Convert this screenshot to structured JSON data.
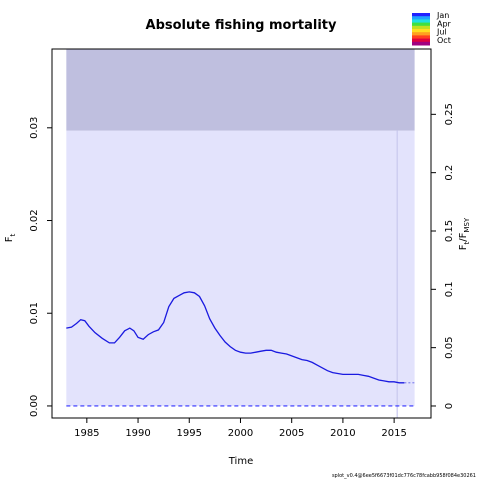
{
  "chart_data": {
    "type": "line",
    "title": "Absolute fishing mortality",
    "xlabel": "Time",
    "ylabel": "F",
    "ylabel_sub": "t",
    "y2label_a": "F",
    "y2label_a_sub": "t",
    "y2label_b": "/F",
    "y2label_b_sub": "MSY",
    "xlim": [
      1981.6,
      2018.6
    ],
    "ylim": [
      -0.0013,
      0.0385
    ],
    "y2lim": [
      -0.0103,
      0.306
    ],
    "x_ticks": [
      1985,
      1990,
      1995,
      2000,
      2005,
      2010,
      2015
    ],
    "y_ticks": [
      0.0,
      0.01,
      0.02,
      0.03
    ],
    "y_tick_labels": [
      "0.00",
      "0.01",
      "0.02",
      "0.03"
    ],
    "y2_ticks": [
      0,
      0.05,
      0.1,
      0.15,
      0.2,
      0.25
    ],
    "y2_tick_labels": [
      "0",
      "0.05",
      "0.1",
      "0.15",
      "0.2",
      "0.25"
    ],
    "bands": [
      {
        "x": [
          1983,
          2017
        ],
        "y": [
          0,
          0.0297
        ],
        "color": "#e3e3fc"
      },
      {
        "x": [
          1983,
          2017
        ],
        "y": [
          0.0297,
          0.0385
        ],
        "color": "#bfbfdf"
      }
    ],
    "vline_x": 2015.3,
    "zero_line": {
      "y": 0,
      "x": [
        1983,
        2017
      ]
    },
    "series": [
      {
        "color": "#1a1ae0",
        "x": [
          1983,
          1983.5,
          1984,
          1984.4,
          1984.8,
          1985.2,
          1985.8,
          1986.5,
          1987.2,
          1987.7,
          1988.2,
          1988.7,
          1989.2,
          1989.6,
          1990,
          1990.5,
          1991,
          1991.5,
          1992,
          1992.5,
          1993,
          1993.5,
          1994,
          1994.5,
          1995,
          1995.5,
          1996,
          1996.5,
          1997,
          1997.5,
          1998,
          1998.5,
          1999,
          1999.5,
          2000,
          2000.5,
          2001,
          2001.5,
          2002,
          2002.5,
          2003,
          2003.5,
          2004,
          2004.5,
          2005,
          2005.5,
          2006,
          2006.5,
          2007,
          2007.5,
          2008,
          2008.5,
          2009,
          2009.5,
          2010,
          2010.5,
          2011,
          2011.5,
          2012,
          2012.5,
          2013,
          2013.5,
          2014,
          2014.5,
          2015,
          2015.5,
          2016
        ],
        "y": [
          0.0084,
          0.0085,
          0.0089,
          0.0093,
          0.0092,
          0.0086,
          0.0079,
          0.0073,
          0.0068,
          0.0068,
          0.0074,
          0.0081,
          0.0084,
          0.0081,
          0.0074,
          0.0072,
          0.0077,
          0.008,
          0.0082,
          0.009,
          0.0107,
          0.0116,
          0.0119,
          0.0122,
          0.0123,
          0.0122,
          0.0118,
          0.0108,
          0.0094,
          0.0084,
          0.0076,
          0.0069,
          0.0064,
          0.006,
          0.0058,
          0.0057,
          0.0057,
          0.0058,
          0.0059,
          0.006,
          0.006,
          0.0058,
          0.0057,
          0.0056,
          0.0054,
          0.0052,
          0.005,
          0.0049,
          0.0047,
          0.0044,
          0.0041,
          0.0038,
          0.0036,
          0.0035,
          0.0034,
          0.0034,
          0.0034,
          0.0034,
          0.0033,
          0.0032,
          0.003,
          0.0028,
          0.0027,
          0.0026,
          0.0026,
          0.0025,
          0.0025
        ]
      }
    ],
    "projection": {
      "x": [
        2016,
        2017
      ],
      "y": [
        0.0025,
        0.0025
      ],
      "color": "#8888ee"
    },
    "legend": {
      "labels": [
        "Jan",
        "Apr",
        "Jul",
        "Oct"
      ],
      "colors": [
        "#2020ff",
        "#20a0ff",
        "#20e0e0",
        "#40e040",
        "#c0e020",
        "#ffe020",
        "#ffa020",
        "#ff4020",
        "#e00040",
        "#a00080"
      ]
    },
    "footnote": "splot_v0.4@6ee5f6673f01dc776c78fcabb958f084e30261"
  }
}
